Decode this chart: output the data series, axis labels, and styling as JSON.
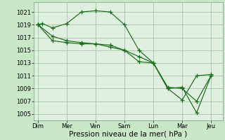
{
  "background_color": "#c8e8c8",
  "plot_bg_color": "#e0f0e0",
  "grid_color": "#99bb99",
  "line_color": "#1a6b1a",
  "marker_color": "#1a6b1a",
  "xlabel": "Pression niveau de la mer( hPa )",
  "xlabel_fontsize": 7.5,
  "ylim": [
    1004,
    1022.5
  ],
  "yticks": [
    1005,
    1007,
    1009,
    1011,
    1013,
    1015,
    1017,
    1019,
    1021
  ],
  "ytick_fontsize": 6,
  "xtick_labels": [
    "Dim",
    "Mer",
    "Ven",
    "Sam",
    "Lun",
    "Mar",
    "Jeu"
  ],
  "xtick_positions": [
    0,
    1,
    2,
    3,
    4,
    5,
    6
  ],
  "xtick_fontsize": 6,
  "xlim": [
    -0.15,
    6.4
  ],
  "series": [
    {
      "x": [
        0.0,
        0.15,
        0.5,
        1.0,
        1.5,
        2.0,
        2.5,
        3.0,
        3.5,
        4.0,
        4.5,
        5.0,
        5.5,
        6.0
      ],
      "y": [
        1019,
        1019.2,
        1018.5,
        1019.2,
        1021.0,
        1021.2,
        1021.0,
        1019.0,
        1015.0,
        1013.0,
        1009.0,
        1007.2,
        1011.0,
        1011.2
      ]
    },
    {
      "x": [
        0.0,
        0.5,
        1.0,
        1.5,
        2.0,
        2.5,
        3.0,
        3.5,
        4.0,
        4.5,
        5.0,
        5.5,
        6.0
      ],
      "y": [
        1019.0,
        1016.5,
        1016.2,
        1016.0,
        1016.0,
        1015.8,
        1015.0,
        1014.0,
        1013.0,
        1009.0,
        1009.2,
        1005.2,
        1011.0
      ]
    },
    {
      "x": [
        0.0,
        0.5,
        1.0,
        1.5,
        2.0,
        2.5,
        3.0,
        3.5,
        4.0,
        4.5,
        5.0,
        5.5,
        6.0
      ],
      "y": [
        1019.0,
        1017.2,
        1016.5,
        1016.2,
        1016.0,
        1015.5,
        1015.0,
        1013.2,
        1013.0,
        1009.2,
        1009.0,
        1007.0,
        1011.0
      ]
    }
  ],
  "linewidth": 0.85,
  "markersize": 4,
  "markeredgewidth": 0.9
}
